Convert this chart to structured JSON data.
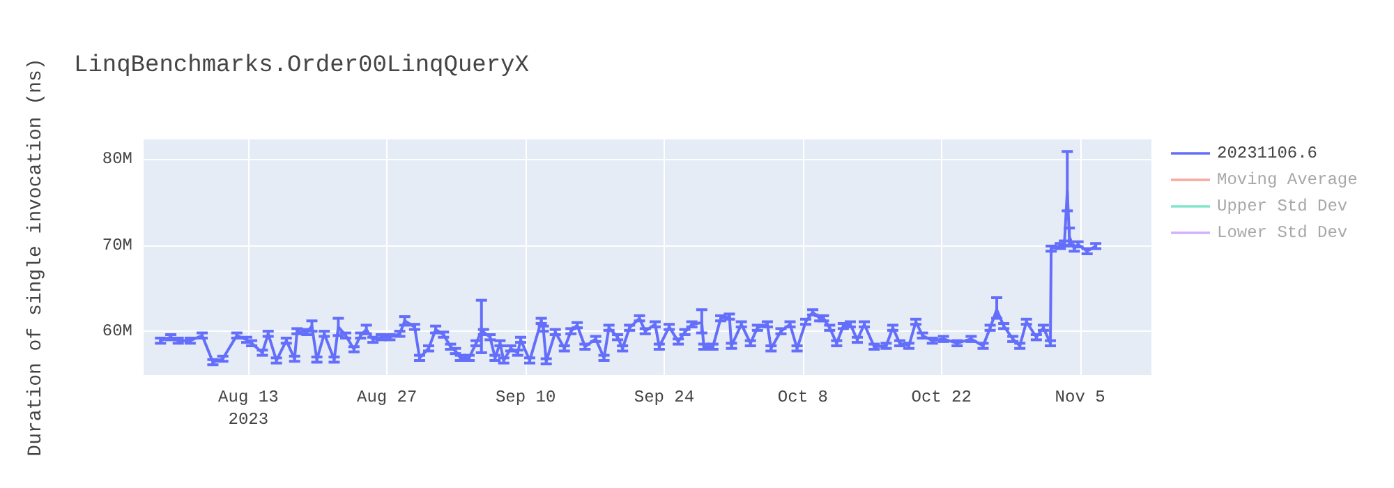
{
  "chart_data": {
    "type": "line",
    "title": "LinqBenchmarks.Order00LinqQueryX",
    "ylabel": "Duration of single invocation (ns)",
    "xlim": [
      "2023-08-02T10:00",
      "2023-11-12T05:00"
    ],
    "xticks": [
      {
        "value": "2023-08-13",
        "label": "Aug 13\n2023"
      },
      {
        "value": "2023-08-27",
        "label": "Aug 27"
      },
      {
        "value": "2023-09-10",
        "label": "Sep 10"
      },
      {
        "value": "2023-09-24",
        "label": "Sep 24"
      },
      {
        "value": "2023-10-08",
        "label": "Oct 8"
      },
      {
        "value": "2023-10-22",
        "label": "Oct 22"
      },
      {
        "value": "2023-11-05",
        "label": "Nov 5"
      }
    ],
    "ylim": [
      54900000,
      82300000
    ],
    "yticks": [
      {
        "value": 60000000,
        "label": "60M"
      },
      {
        "value": 70000000,
        "label": "70M"
      },
      {
        "value": 80000000,
        "label": "80M"
      }
    ],
    "grid": true,
    "legend": "top right",
    "marker": "none",
    "x": [
      "2023-08-04T03:00",
      "2023-08-05T04:00",
      "2023-08-05T22:00",
      "2023-08-07T03:00",
      "2023-08-08T08:00",
      "2023-08-09T10:00",
      "2023-08-10T10:00",
      "2023-08-11T20:00",
      "2023-08-12T20:00",
      "2023-08-13T08:00",
      "2023-08-14T10:00",
      "2023-08-15T00:00",
      "2023-08-15T20:00",
      "2023-08-16T20:00",
      "2023-08-17T16:00",
      "2023-08-17T22:00",
      "2023-08-18T22:00",
      "2023-08-19T10:00",
      "2023-08-19T22:00",
      "2023-08-20T16:00",
      "2023-08-21T16:00",
      "2023-08-22T02:00",
      "2023-08-22T20:00",
      "2023-08-23T16:00",
      "2023-08-24T08:00",
      "2023-08-24T22:00",
      "2023-08-25T14:00",
      "2023-08-26T10:00",
      "2023-08-27T07:00",
      "2023-08-28T07:00",
      "2023-08-28T19:00",
      "2023-08-29T19:00",
      "2023-08-30T07:00",
      "2023-08-31T05:00",
      "2023-08-31T22:00",
      "2023-09-01T17:00",
      "2023-09-02T10:00",
      "2023-09-02T22:00",
      "2023-09-03T10:00",
      "2023-09-04T07:00",
      "2023-09-05T00:00",
      "2023-09-05T13:00",
      "2023-09-05T18:00",
      "2023-09-06T10:00",
      "2023-09-06T22:00",
      "2023-09-07T10:00",
      "2023-09-07T19:00",
      "2023-09-08T12:00",
      "2023-09-09T05:00",
      "2023-09-09T12:00",
      "2023-09-10T10:00",
      "2023-09-11T14:00",
      "2023-09-11T19:00",
      "2023-09-12T02:00",
      "2023-09-13T00:00",
      "2023-09-13T22:00",
      "2023-09-14T14:00",
      "2023-09-15T05:00",
      "2023-09-16T00:00",
      "2023-09-17T02:00",
      "2023-09-17T22:00",
      "2023-09-18T10:00",
      "2023-09-19T07:00",
      "2023-09-19T19:00",
      "2023-09-20T12:00",
      "2023-09-21T12:00",
      "2023-09-22T02:00",
      "2023-09-23T02:00",
      "2023-09-23T12:00",
      "2023-09-24T12:00",
      "2023-09-25T10:00",
      "2023-09-26T02:00",
      "2023-09-26T19:00",
      "2023-09-27T19:00",
      "2023-09-28T00:00",
      "2023-09-28T22:00",
      "2023-09-29T17:00",
      "2023-09-30T14:00",
      "2023-09-30T19:00",
      "2023-10-01T19:00",
      "2023-10-02T17:00",
      "2023-10-03T10:00",
      "2023-10-04T10:00",
      "2023-10-04T19:00",
      "2023-10-05T19:00",
      "2023-10-06T17:00",
      "2023-10-07T10:00",
      "2023-10-08T07:00",
      "2023-10-09T00:00",
      "2023-10-09T17:00",
      "2023-10-10T02:00",
      "2023-10-10T17:00",
      "2023-10-11T10:00",
      "2023-10-12T02:00",
      "2023-10-12T19:00",
      "2023-10-13T12:00",
      "2023-10-14T05:00",
      "2023-10-15T05:00",
      "2023-10-16T10:00",
      "2023-10-17T02:00",
      "2023-10-17T19:00",
      "2023-10-18T17:00",
      "2023-10-19T10:00",
      "2023-10-20T02:00",
      "2023-10-21T02:00",
      "2023-10-22T05:00",
      "2023-10-23T14:00",
      "2023-10-25T00:00",
      "2023-10-26T05:00",
      "2023-10-26T22:00",
      "2023-10-27T14:00",
      "2023-10-28T07:00",
      "2023-10-29T05:00",
      "2023-10-29T22:00",
      "2023-10-30T14:00",
      "2023-10-31T14:00",
      "2023-11-01T07:00",
      "2023-11-02T00:00",
      "2023-11-02T02:00",
      "2023-11-03T00:00",
      "2023-11-03T10:00",
      "2023-11-03T17:00",
      "2023-11-03T22:00",
      "2023-11-04T10:00",
      "2023-11-04T19:00",
      "2023-11-05T17:00",
      "2023-11-06T14:00"
    ],
    "series": [
      {
        "name": "20231106.6",
        "color": "#636efa",
        "values": [
          58900000,
          59300000,
          58900000,
          58900000,
          59500000,
          56400000,
          56800000,
          59500000,
          59000000,
          58600000,
          57500000,
          59700000,
          56600000,
          58900000,
          56800000,
          60000000,
          59900000,
          60600000,
          56700000,
          59700000,
          56700000,
          60500000,
          59500000,
          57900000,
          59500000,
          60200000,
          59000000,
          59300000,
          59300000,
          59700000,
          61200000,
          60500000,
          56900000,
          58000000,
          60200000,
          59600000,
          58200000,
          57700000,
          56900000,
          56900000,
          58600000,
          60000000,
          59900000,
          59300000,
          56900000,
          58600000,
          56600000,
          58000000,
          57500000,
          59000000,
          56600000,
          61200000,
          60300000,
          56500000,
          59900000,
          58000000,
          60000000,
          60700000,
          58200000,
          59100000,
          56900000,
          60400000,
          59300000,
          58000000,
          60400000,
          61500000,
          60000000,
          60800000,
          58200000,
          60500000,
          58800000,
          59900000,
          60800000,
          61000000,
          58200000,
          58200000,
          61500000,
          61700000,
          58300000,
          60800000,
          58600000,
          60400000,
          60800000,
          58000000,
          60000000,
          60800000,
          58000000,
          61100000,
          62200000,
          61500000,
          61500000,
          60400000,
          58600000,
          60600000,
          60800000,
          59000000,
          60800000,
          58200000,
          58300000,
          60400000,
          58600000,
          58300000,
          61100000,
          59500000,
          58900000,
          59100000,
          58600000,
          59100000,
          58300000,
          60400000,
          62500000,
          60600000,
          59100000,
          58300000,
          61100000,
          59300000,
          60400000,
          58600000,
          69600000,
          69900000,
          70200000,
          76300000,
          71000000,
          69600000,
          70100000,
          69300000,
          69900000
        ],
        "errors": [
          300000,
          300000,
          300000,
          300000,
          300000,
          300000,
          300000,
          300000,
          300000,
          300000,
          300000,
          300000,
          300000,
          300000,
          300000,
          300000,
          300000,
          600000,
          300000,
          300000,
          300000,
          1000000,
          300000,
          300000,
          300000,
          500000,
          300000,
          300000,
          300000,
          300000,
          500000,
          300000,
          300000,
          300000,
          400000,
          300000,
          300000,
          300000,
          300000,
          300000,
          300000,
          [
            57500000,
            63600000
          ],
          300000,
          300000,
          300000,
          300000,
          300000,
          300000,
          300000,
          300000,
          300000,
          300000,
          300000,
          300000,
          300000,
          300000,
          300000,
          300000,
          300000,
          300000,
          300000,
          300000,
          300000,
          300000,
          300000,
          300000,
          300000,
          300000,
          300000,
          300000,
          300000,
          300000,
          300000,
          [
            59800000,
            62500000
          ],
          300000,
          300000,
          300000,
          300000,
          300000,
          300000,
          300000,
          300000,
          300000,
          300000,
          300000,
          300000,
          300000,
          300000,
          300000,
          300000,
          300000,
          300000,
          300000,
          300000,
          300000,
          300000,
          300000,
          300000,
          300000,
          300000,
          300000,
          300000,
          300000,
          300000,
          300000,
          300000,
          300000,
          300000,
          300000,
          300000,
          [
            61500000,
            63900000
          ],
          300000,
          300000,
          300000,
          300000,
          300000,
          300000,
          300000,
          300000,
          300000,
          300000,
          [
            74000000,
            80900000
          ],
          1000000,
          300000,
          300000,
          300000,
          300000
        ]
      },
      {
        "name": "Moving Average",
        "color": "#ef553b",
        "values": [
          null,
          null,
          null,
          null,
          null,
          null,
          null,
          null,
          null,
          null,
          null,
          null,
          null,
          null,
          null,
          null,
          null,
          null,
          null,
          null,
          null,
          null,
          null,
          null,
          null,
          null,
          null,
          null,
          null,
          null,
          null,
          null,
          null,
          null,
          null,
          null,
          null,
          null,
          null,
          null,
          null,
          null,
          null,
          null,
          null,
          null,
          null,
          null,
          null,
          null,
          null,
          null,
          null,
          null,
          null,
          null,
          null,
          null,
          null,
          null,
          null,
          null,
          null,
          null,
          null,
          null,
          null,
          null,
          null,
          null,
          null,
          null,
          null,
          null,
          null,
          null,
          null,
          null,
          null,
          null,
          null,
          null,
          null,
          null,
          null,
          null,
          null,
          null,
          null,
          null,
          null,
          null,
          null,
          null,
          null,
          null,
          null,
          null,
          null,
          null,
          null,
          null,
          null,
          null,
          null,
          null,
          null,
          null,
          null,
          null,
          null,
          null,
          null,
          null,
          null,
          null,
          null,
          null,
          null,
          null,
          null,
          null,
          null,
          null,
          null,
          null,
          null
        ]
      },
      {
        "name": "Upper Std Dev",
        "color": "#00cc96",
        "values": [
          null,
          null,
          null,
          null,
          null,
          null,
          null,
          null,
          null,
          null,
          null,
          null,
          null,
          null,
          null,
          null,
          null,
          null,
          null,
          null,
          null,
          null,
          null,
          null,
          null,
          null,
          null,
          null,
          null,
          null,
          null,
          null,
          null,
          null,
          null,
          null,
          null,
          null,
          null,
          null,
          null,
          null,
          null,
          null,
          null,
          null,
          null,
          null,
          null,
          null,
          null,
          null,
          null,
          null,
          null,
          null,
          null,
          null,
          null,
          null,
          null,
          null,
          null,
          null,
          null,
          null,
          null,
          null,
          null,
          null,
          null,
          null,
          null,
          null,
          null,
          null,
          null,
          null,
          null,
          null,
          null,
          null,
          null,
          null,
          null,
          null,
          null,
          null,
          null,
          null,
          null,
          null,
          null,
          null,
          null,
          null,
          null,
          null,
          null,
          null,
          null,
          null,
          null,
          null,
          null,
          null,
          null,
          null,
          null,
          null,
          null,
          null,
          null,
          null,
          null,
          null,
          null,
          null,
          null,
          null,
          null,
          null,
          null,
          null,
          null,
          null,
          null
        ]
      },
      {
        "name": "Lower Std Dev",
        "color": "#ab63fa",
        "values": [
          null,
          null,
          null,
          null,
          null,
          null,
          null,
          null,
          null,
          null,
          null,
          null,
          null,
          null,
          null,
          null,
          null,
          null,
          null,
          null,
          null,
          null,
          null,
          null,
          null,
          null,
          null,
          null,
          null,
          null,
          null,
          null,
          null,
          null,
          null,
          null,
          null,
          null,
          null,
          null,
          null,
          null,
          null,
          null,
          null,
          null,
          null,
          null,
          null,
          null,
          null,
          null,
          null,
          null,
          null,
          null,
          null,
          null,
          null,
          null,
          null,
          null,
          null,
          null,
          null,
          null,
          null,
          null,
          null,
          null,
          null,
          null,
          null,
          null,
          null,
          null,
          null,
          null,
          null,
          null,
          null,
          null,
          null,
          null,
          null,
          null,
          null,
          null,
          null,
          null,
          null,
          null,
          null,
          null,
          null,
          null,
          null,
          null,
          null,
          null,
          null,
          null,
          null,
          null,
          null,
          null,
          null,
          null,
          null,
          null,
          null,
          null,
          null,
          null,
          null,
          null,
          null,
          null,
          null,
          null,
          null,
          null,
          null,
          null,
          null,
          null,
          null
        ]
      }
    ]
  }
}
